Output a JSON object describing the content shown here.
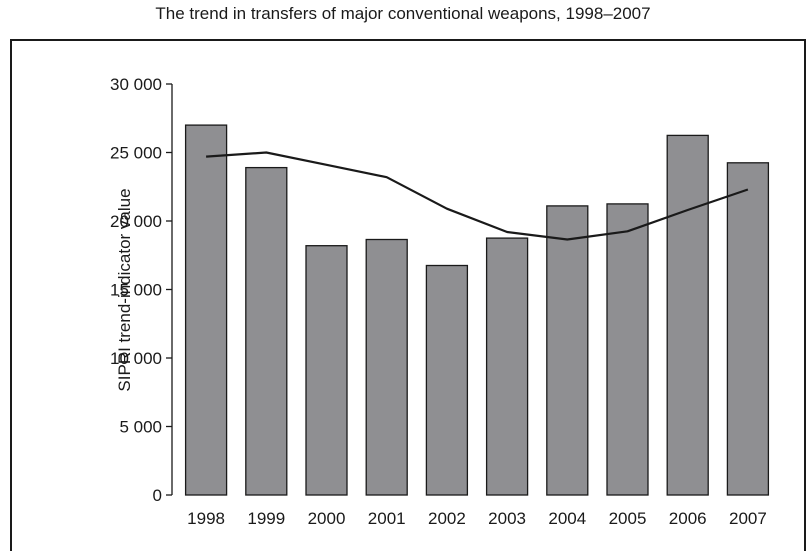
{
  "chart_data": {
    "type": "bar",
    "title": "The trend in transfers of major conventional weapons, 1998–2007",
    "xlabel": "",
    "ylabel": "SIPRI trend-indicator value",
    "categories": [
      "1998",
      "1999",
      "2000",
      "2001",
      "2002",
      "2003",
      "2004",
      "2005",
      "2006",
      "2007"
    ],
    "series": [
      {
        "type": "bar",
        "values": [
          27000,
          23900,
          18200,
          18650,
          16750,
          18750,
          21100,
          21250,
          26250,
          24250
        ]
      },
      {
        "type": "line",
        "values": [
          24700,
          25000,
          24100,
          23200,
          20900,
          19200,
          18650,
          19250,
          20800,
          22300
        ]
      }
    ],
    "ylim": [
      0,
      30000
    ],
    "yticks": [
      0,
      5000,
      10000,
      15000,
      20000,
      25000,
      30000
    ],
    "ytick_labels": [
      "0",
      "5 000",
      "10 000",
      "15 000",
      "20 000",
      "25 000",
      "30 000"
    ],
    "grid": false,
    "colors": {
      "bar_fill": "#8f8f92",
      "bar_stroke": "#1a1a1a",
      "line": "#1a1a1a",
      "axis": "#1a1a1a"
    }
  }
}
